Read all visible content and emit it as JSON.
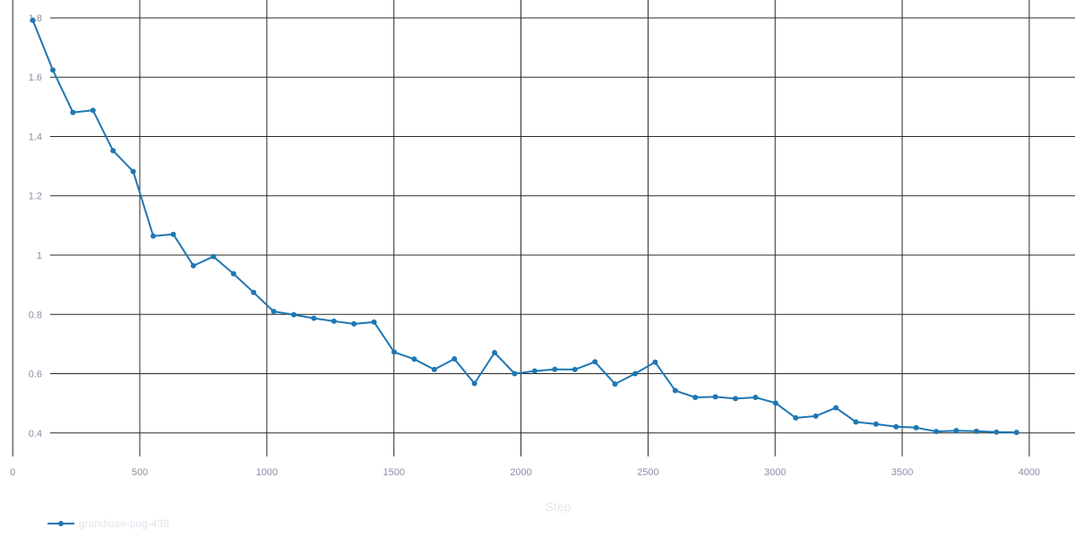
{
  "chart_data": {
    "type": "line",
    "title": "",
    "xlabel": "Step",
    "ylabel": "",
    "xlim": [
      -50,
      4180
    ],
    "ylim": [
      0.33,
      1.83
    ],
    "xticks": [
      0,
      500,
      1000,
      1500,
      2000,
      2500,
      3000,
      3500,
      4000
    ],
    "xtick_labels": [
      "0",
      "500",
      "1000",
      "1500",
      "2000",
      "2500",
      "3000",
      "3500",
      "4000"
    ],
    "yticks": [
      0.4,
      0.6,
      0.8,
      1.0,
      1.2,
      1.4,
      1.6,
      1.8
    ],
    "ytick_labels": [
      "0.4",
      "0.6",
      "0.8",
      "1",
      "1.2",
      "1.4",
      "1.6",
      "1.8"
    ],
    "grid": true,
    "legend_position": "bottom-left",
    "color": "#1f77b4",
    "series": [
      {
        "name": "grandiose-pug-439",
        "x": [
          79,
          158,
          237,
          316,
          395,
          474,
          553,
          632,
          711,
          790,
          869,
          948,
          1027,
          1106,
          1185,
          1264,
          1343,
          1422,
          1501,
          1580,
          1659,
          1738,
          1817,
          1896,
          1975,
          2054,
          2133,
          2212,
          2291,
          2370,
          2449,
          2528,
          2607,
          2686,
          2765,
          2844,
          2923,
          3002,
          3081,
          3160,
          3239,
          3318,
          3397,
          3476,
          3555,
          3634,
          3713,
          3792,
          3871,
          3950
        ],
        "y": [
          1.792,
          1.624,
          1.481,
          1.488,
          1.352,
          1.282,
          1.064,
          1.07,
          0.964,
          0.995,
          0.937,
          0.874,
          0.81,
          0.799,
          0.787,
          0.777,
          0.768,
          0.774,
          0.673,
          0.649,
          0.614,
          0.65,
          0.567,
          0.671,
          0.6,
          0.609,
          0.615,
          0.614,
          0.64,
          0.565,
          0.6,
          0.639,
          0.543,
          0.52,
          0.522,
          0.516,
          0.52,
          0.501,
          0.451,
          0.457,
          0.485,
          0.437,
          0.43,
          0.421,
          0.418,
          0.405,
          0.408,
          0.406,
          0.403,
          0.402
        ]
      }
    ]
  }
}
